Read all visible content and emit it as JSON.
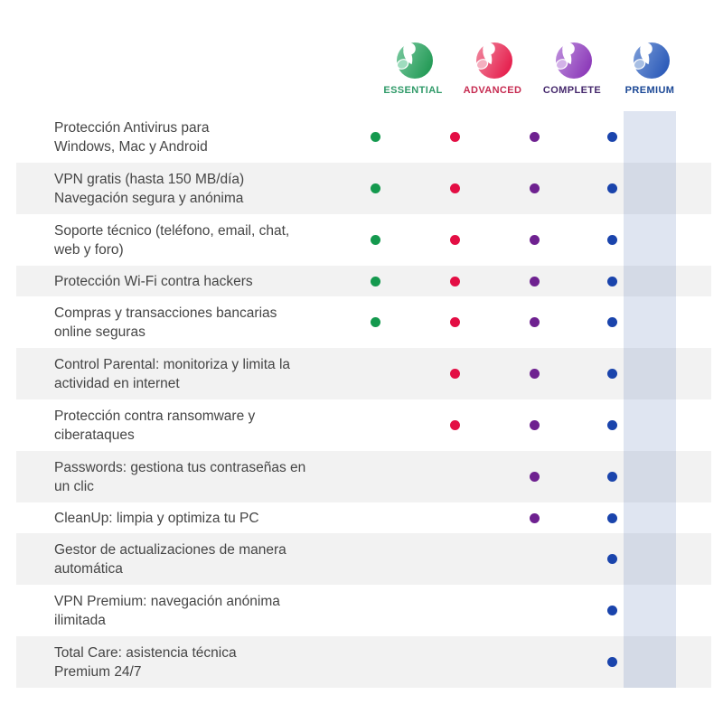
{
  "plans": [
    {
      "id": "essential",
      "label": "ESSENTIAL",
      "label_color": "#2F9A68",
      "dot_color": "#14994E",
      "logo_gradient": [
        "#7CCBA2",
        "#279C59"
      ],
      "logo_accent": "#9FDCBE"
    },
    {
      "id": "advanced",
      "label": "ADVANCED",
      "label_color": "#C62A50",
      "dot_color": "#E30E44",
      "logo_gradient": [
        "#F18CA2",
        "#E62350"
      ],
      "logo_accent": "#F4B0C0"
    },
    {
      "id": "complete",
      "label": "COMPLETE",
      "label_color": "#45286C",
      "dot_color": "#6E2190",
      "logo_gradient": [
        "#C093DE",
        "#8E3DBA"
      ],
      "logo_accent": "#D3B2E8"
    },
    {
      "id": "premium",
      "label": "PREMIUM",
      "label_color": "#1A4795",
      "dot_color": "#1A44AC",
      "logo_gradient": [
        "#7E9FD9",
        "#2F5DBA"
      ],
      "logo_accent": "#A7BEE3"
    }
  ],
  "features": [
    {
      "lines": [
        "Protección Antivirus para",
        "Windows, Mac y Android"
      ],
      "availability": [
        true,
        true,
        true,
        true
      ]
    },
    {
      "lines": [
        "VPN gratis (hasta 150 MB/día)",
        "Navegación segura y anónima"
      ],
      "availability": [
        true,
        true,
        true,
        true
      ]
    },
    {
      "lines": [
        "Soporte técnico (teléfono, email, chat,",
        "web y foro)"
      ],
      "availability": [
        true,
        true,
        true,
        true
      ]
    },
    {
      "lines": [
        "Protección Wi-Fi contra hackers"
      ],
      "availability": [
        true,
        true,
        true,
        true
      ]
    },
    {
      "lines": [
        "Compras y transacciones bancarias",
        "online seguras"
      ],
      "availability": [
        true,
        true,
        true,
        true
      ]
    },
    {
      "lines": [
        "Control Parental: monitoriza y limita la",
        "actividad en internet"
      ],
      "availability": [
        false,
        true,
        true,
        true
      ]
    },
    {
      "lines": [
        "Protección contra ransomware y",
        "ciberataques"
      ],
      "availability": [
        false,
        true,
        true,
        true
      ]
    },
    {
      "lines": [
        "Passwords: gestiona tus contraseñas en",
        "un clic"
      ],
      "availability": [
        false,
        false,
        true,
        true
      ]
    },
    {
      "lines": [
        "CleanUp: limpia y optimiza tu PC"
      ],
      "availability": [
        false,
        false,
        true,
        true
      ]
    },
    {
      "lines": [
        "Gestor de actualizaciones de manera",
        "automática"
      ],
      "availability": [
        false,
        false,
        false,
        true
      ]
    },
    {
      "lines": [
        "VPN Premium: navegación anónima",
        "ilimitada"
      ],
      "availability": [
        false,
        false,
        false,
        true
      ]
    },
    {
      "lines": [
        "Total Care: asistencia técnica",
        "Premium 24/7"
      ],
      "availability": [
        false,
        false,
        false,
        true
      ]
    }
  ],
  "style": {
    "background": "#FFFFFF",
    "stripe_color": "#F2F2F2",
    "premium_band_color": "#2550A026",
    "text_color": "#454545"
  }
}
